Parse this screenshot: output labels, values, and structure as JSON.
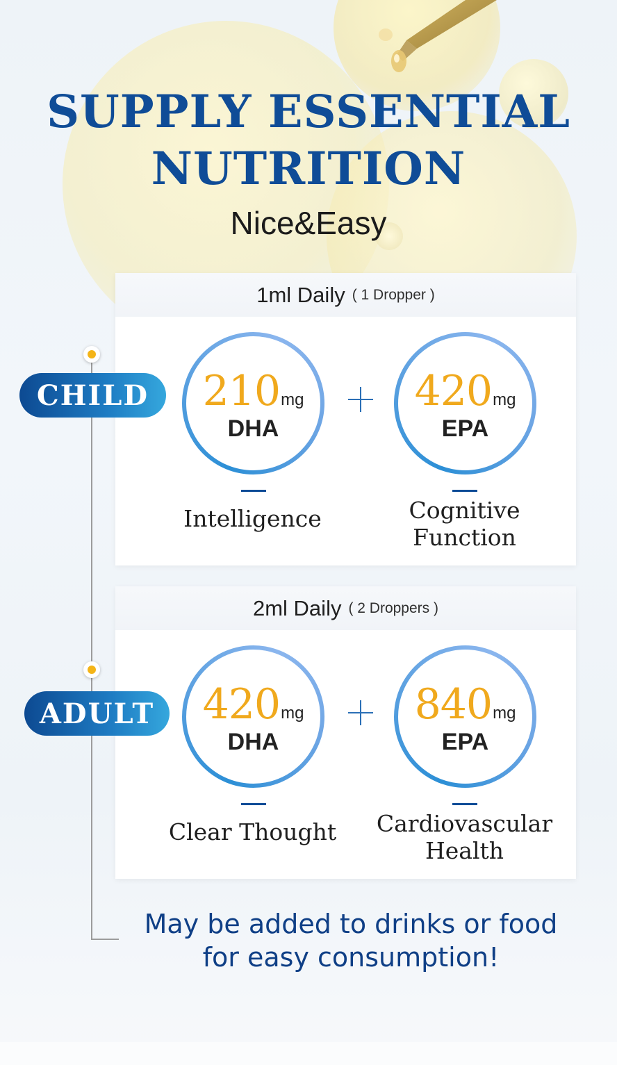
{
  "header": {
    "title_line1": "SUPPLY ESSENTIAL",
    "title_line2": "NUTRITION",
    "subtitle": "Nice&Easy"
  },
  "groups": [
    {
      "label": "CHILD",
      "dose": "1ml Daily",
      "dose_note": "( 1 Dropper )",
      "items": [
        {
          "amount": "210",
          "unit": "mg",
          "nutrient": "DHA",
          "benefit": "Intelligence"
        },
        {
          "amount": "420",
          "unit": "mg",
          "nutrient": "EPA",
          "benefit": "Cognitive Function"
        }
      ]
    },
    {
      "label": "ADULT",
      "dose": "2ml Daily",
      "dose_note": "( 2 Droppers )",
      "items": [
        {
          "amount": "420",
          "unit": "mg",
          "nutrient": "DHA",
          "benefit": "Clear Thought"
        },
        {
          "amount": "840",
          "unit": "mg",
          "nutrient": "EPA",
          "benefit": "Cardiovascular Health"
        }
      ]
    }
  ],
  "footer": {
    "line1": "May be added to drinks or food",
    "line2": "for easy consumption!"
  },
  "colors": {
    "title": "#0f4c97",
    "amount": "#f0a91d",
    "pill_start": "#0d4a92",
    "pill_end": "#35a7dd",
    "ring": "#5aa0e0",
    "footer_text": "#0f3f86"
  },
  "icons": [
    "dropper-icon",
    "timeline-dot-icon",
    "plus-icon"
  ]
}
